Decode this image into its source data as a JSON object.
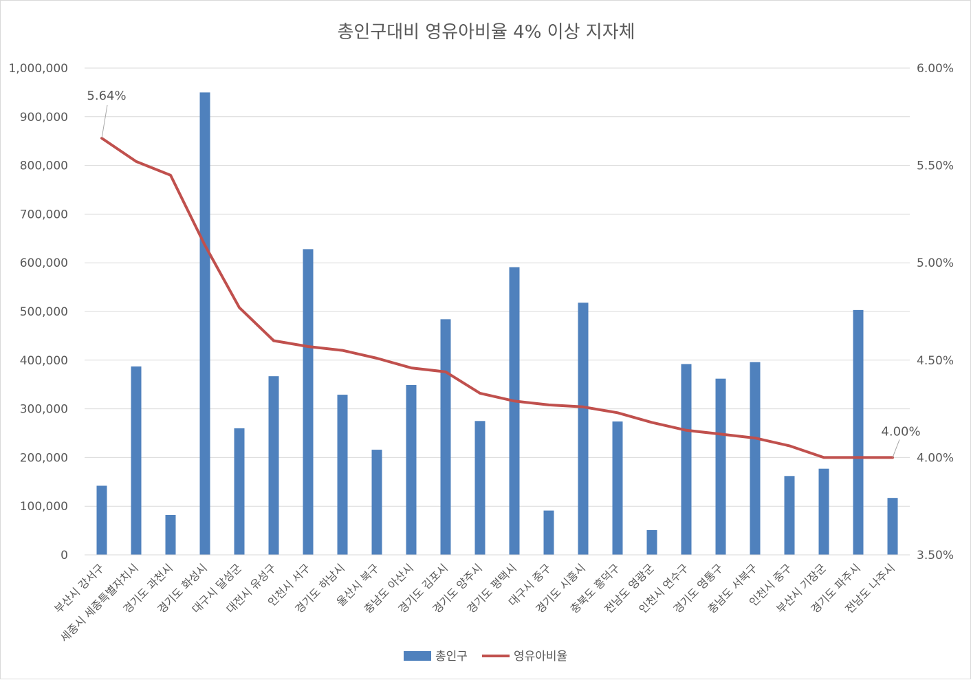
{
  "chart_data": {
    "type": "bar",
    "title": "총인구대비 영유아비율 4% 이상 지자체",
    "categories": [
      "부산시 강서구",
      "세종시 세종특별자치시",
      "경기도 과천시",
      "경기도 화성시",
      "대구시 달성군",
      "대전시 유성구",
      "인천시 서구",
      "경기도 하남시",
      "울산시 북구",
      "충남도 아산시",
      "경기도 김포시",
      "경기도 양주시",
      "경기도 평택시",
      "대구시 중구",
      "경기도 시흥시",
      "충북도 흥덕구",
      "전남도 영광군",
      "인천시 연수구",
      "경기도 영통구",
      "충남도 서북구",
      "인천시 중구",
      "부산시 기장군",
      "경기도 파주시",
      "전남도 나주시"
    ],
    "series": [
      {
        "name": "총인구",
        "type": "bar",
        "axis": "left",
        "color": "#4f81bd",
        "values": [
          142000,
          387000,
          82000,
          950000,
          260000,
          367000,
          628000,
          329000,
          216000,
          349000,
          484000,
          275000,
          591000,
          91000,
          518000,
          274000,
          51000,
          392000,
          362000,
          396000,
          162000,
          177000,
          503000,
          117000
        ]
      },
      {
        "name": "영유아비율",
        "type": "line",
        "axis": "right",
        "color": "#c0504d",
        "values": [
          0.0564,
          0.0552,
          0.0545,
          0.0509,
          0.0477,
          0.046,
          0.0457,
          0.0455,
          0.0451,
          0.0446,
          0.0444,
          0.0433,
          0.0429,
          0.0427,
          0.0426,
          0.0423,
          0.0418,
          0.0414,
          0.0412,
          0.041,
          0.0406,
          0.04,
          0.04,
          0.04
        ]
      }
    ],
    "left_axis": {
      "min": 0,
      "max": 1000000,
      "step": 100000,
      "tick_labels": [
        "0",
        "100,000",
        "200,000",
        "300,000",
        "400,000",
        "500,000",
        "600,000",
        "700,000",
        "800,000",
        "900,000",
        "1,000,000"
      ]
    },
    "right_axis": {
      "min": 0.035,
      "max": 0.06,
      "step": 0.005,
      "tick_labels": [
        "3.50%",
        "4.00%",
        "4.50%",
        "5.00%",
        "5.50%",
        "6.00%"
      ]
    },
    "data_labels": [
      {
        "series": "영유아비율",
        "index": 0,
        "text": "5.64%"
      },
      {
        "series": "영유아비율",
        "index": 23,
        "text": "4.00%"
      }
    ],
    "grid": true,
    "legend_position": "bottom",
    "colors": {
      "gridline": "#d9d9d9",
      "text": "#595959",
      "border": "#d9d9d9"
    }
  }
}
